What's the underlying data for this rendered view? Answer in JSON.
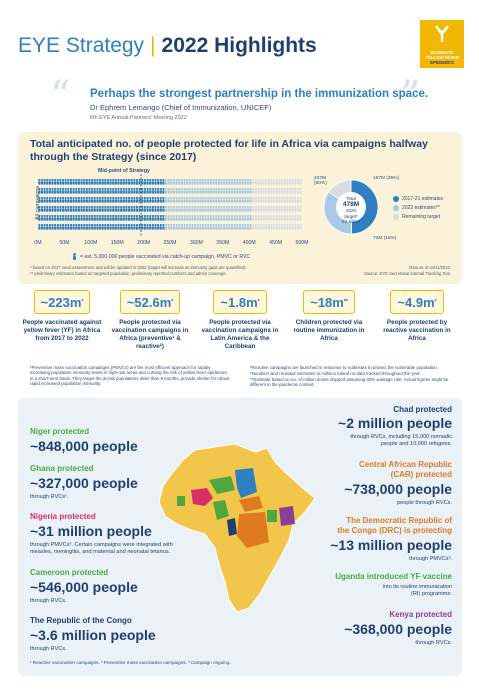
{
  "header": {
    "title_left": "EYE Strategy",
    "title_sep": "|",
    "title_right": "2022 Highlights",
    "logo_lines": [
      "ELIMINATE",
      "YELLOW FEVER",
      "EPIDEMICS"
    ]
  },
  "quote": {
    "text": "Perhaps the strongest partnership in the immunization space.",
    "author": "Dr Ephrem Lemango (Chief of Immunization, UNICEF)",
    "event": "6th EYE Annual Partners' Meeting 2022"
  },
  "chart_data": {
    "type": "bar",
    "title": "Total anticipated no. of people protected for life in Africa via campaigns halfway through the Strategy (since 2017)",
    "ylabel": "All campaigns",
    "midpoint_label": "Mid-point of Strategy",
    "x_ticks": [
      "0M",
      "50M",
      "100M",
      "150M",
      "200M",
      "250M",
      "300M",
      "350M",
      "400M",
      "450M",
      "500M"
    ],
    "xlim": [
      0,
      500
    ],
    "unit_note": "= est. 5,000,000 people vaccinated via catch-up campaign, PMVC or RVC",
    "donut": {
      "center_lines": [
        "Total",
        "478M",
        "2026 target*",
        "for Africa"
      ],
      "segments": [
        {
          "label": "237M (50%)",
          "value": 237,
          "color": "#2f7fc1"
        },
        {
          "label": "167M (35%)",
          "value": 167,
          "color": "#a9c9e6"
        },
        {
          "label": "74M (15%)",
          "value": 74,
          "color": "#d9dde3"
        }
      ],
      "legend": [
        {
          "label": "2017-21 estimates",
          "color": "#2f7fc1"
        },
        {
          "label": "2022 estimates**",
          "color": "#a9c9e6"
        },
        {
          "label": "Remaining target",
          "color": "#d9dde3"
        }
      ]
    },
    "footnotes": [
      "* based on 2017 need assessment and will be updated in 2022 (target will increase as immunity gaps are quantified).",
      "** preliminary estimates based on targeted population, preliminary reported numbers and admin coverage."
    ],
    "source_lines": [
      "Data as of 24/11/2022",
      "Source: EYE Secretariat internal Tracking Tool"
    ]
  },
  "stats": [
    {
      "value": "~223m",
      "sup": "*",
      "label": "People vaccinated against yellow fever (YF) in Africa from 2017 to 2022"
    },
    {
      "value": "~52.6m",
      "sup": "*",
      "label": "People protected via vaccination campaigns in Africa (preventive¹ & reactive²)"
    },
    {
      "value": "~1.8m",
      "sup": "*",
      "label": "People protected via vaccination campaigns in Latin America & the Caribbean"
    },
    {
      "value": "~18m",
      "sup": "**",
      "label": "Children protected via routine immunization in Africa"
    },
    {
      "value": "~4.9m",
      "sup": "*",
      "label": "People protected by reactive vaccination in Africa"
    }
  ],
  "definitions": {
    "left": "¹Preventive mass vaccination campaigns (PMVCs) are the most efficient approach for rapidly increasing population immunity levels in high-risk areas and curbing the risk of yellow fever epidemics in a short-term basis. They target the at-risk populations older than 9 months, provide shelter for robust rapid increased population immunity.",
    "right1": "²Reactive campaigns are launched in response to outbreaks to protect the vulnerable population.",
    "right2": "*Numbers and rounded estimates in millions based on data tracked throughout the year.",
    "right3": "**Estimate based on no. of million doses shipped assuming 40% wastage rate. Actual figures might be different in the pandemic context."
  },
  "countries": {
    "niger": {
      "title": "Niger protected",
      "value": "~848,000 people"
    },
    "ghana": {
      "title": "Ghana protected",
      "value": "~327,000 people",
      "note": "through RVCs¹."
    },
    "nigeria": {
      "title": "Nigeria protected",
      "value": "~31 million people",
      "note1": "through PMVCs². Certain campaigns were integrated with",
      "note2": "measles, meningitis, and maternal and neonatal tetanus."
    },
    "cameroon": {
      "title": "Cameroon protected",
      "value": "~546,000 people",
      "note": "through RVCs."
    },
    "congo": {
      "title": "The Republic of the Congo",
      "value": "~3.6 million people",
      "note": "through RVCs."
    },
    "chad": {
      "title": "Chad protected",
      "value": "~2 million people",
      "note1": "through RVCs, including 15,000 nomadic",
      "note2": "people and 10,000 refugees."
    },
    "car": {
      "title1": "Central African Republic",
      "title2": "(CAR) protected",
      "value": "~738,000 people",
      "note": "people through RVCs."
    },
    "drc": {
      "title1": "The Democratic Republic of",
      "title2": "the Congo (DRC) is protecting",
      "value": "~13 million people",
      "note": "through PMVCs³."
    },
    "uganda": {
      "title": "Uganda introduced YF vaccine",
      "note1": "into its routine immunization",
      "note2": "(RI) programme."
    },
    "kenya": {
      "title": "Kenya protected",
      "value": "~368,000 people",
      "note": "through RVCs."
    }
  },
  "bottom_footnote": "¹ Reactive vaccination campaigns.  ² Preventive mass vaccination campaigns.  ³ Campaign ongoing."
}
